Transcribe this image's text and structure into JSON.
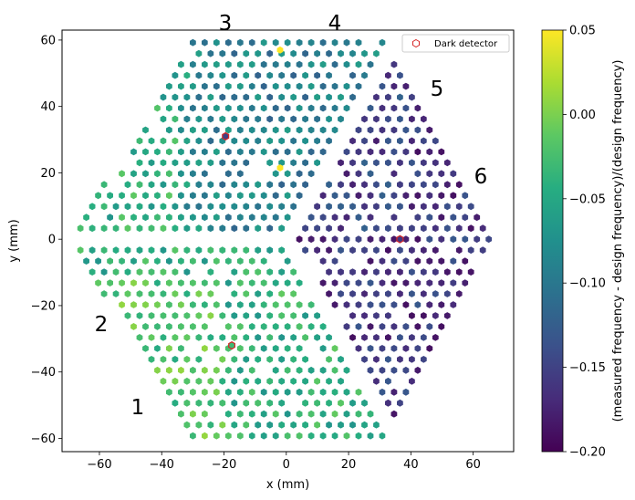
{
  "chart_data": {
    "type": "hexbin-scatter",
    "xlabel": "x (mm)",
    "ylabel": "y (mm)",
    "xlim": [
      -72,
      73
    ],
    "ylim": [
      -64,
      63
    ],
    "xticks": [
      "−60",
      "−40",
      "−20",
      "0",
      "20",
      "40",
      "60"
    ],
    "xtick_values": [
      -60,
      -40,
      -20,
      0,
      20,
      40,
      60
    ],
    "yticks": [
      "−60",
      "−40",
      "−20",
      "0",
      "20",
      "40",
      "60"
    ],
    "ytick_values": [
      -60,
      -40,
      -20,
      0,
      20,
      40,
      60
    ],
    "colorbar": {
      "label": "(measured frequency - design frequency)/(design frequency)",
      "min": -0.2,
      "max": 0.05,
      "ticks": [
        "−0.20",
        "−0.15",
        "−0.10",
        "−0.05",
        "0.00",
        "0.05"
      ],
      "tick_values": [
        -0.2,
        -0.15,
        -0.1,
        -0.05,
        0.0,
        0.05
      ]
    },
    "legend": {
      "label": "Dark detector",
      "location": "top-right"
    },
    "dark_detectors": [
      {
        "x": -19.5,
        "y": 31,
        "value": -0.15
      },
      {
        "x": 36.5,
        "y": 0,
        "value": -0.16
      },
      {
        "x": -17.5,
        "y": -32,
        "value": -0.03
      }
    ],
    "hex_pitch_mm": 3.8,
    "wafers": [
      {
        "id": "1",
        "label_pos": [
          -48,
          -51
        ]
      },
      {
        "id": "2",
        "label_pos": [
          -60,
          -25
        ]
      },
      {
        "id": "3",
        "label_pos": [
          -20,
          65
        ]
      },
      {
        "id": "4",
        "label_pos": [
          16,
          65
        ]
      },
      {
        "id": "5",
        "label_pos": [
          49,
          45
        ]
      },
      {
        "id": "6",
        "label_pos": [
          63,
          19
        ]
      }
    ],
    "wafer_mean_values": {
      "1": -0.04,
      "2": -0.04,
      "3": -0.09,
      "4": -0.15,
      "5": -0.15,
      "6": -0.16
    },
    "outliers": [
      {
        "x": -2,
        "y": 57,
        "value": 0.05
      },
      {
        "x": -2,
        "y": 21.5,
        "value": 0.05
      }
    ]
  },
  "labels": {
    "wafer_1": "1",
    "wafer_2": "2",
    "wafer_3": "3",
    "wafer_4": "4",
    "wafer_5": "5",
    "wafer_6": "6"
  }
}
